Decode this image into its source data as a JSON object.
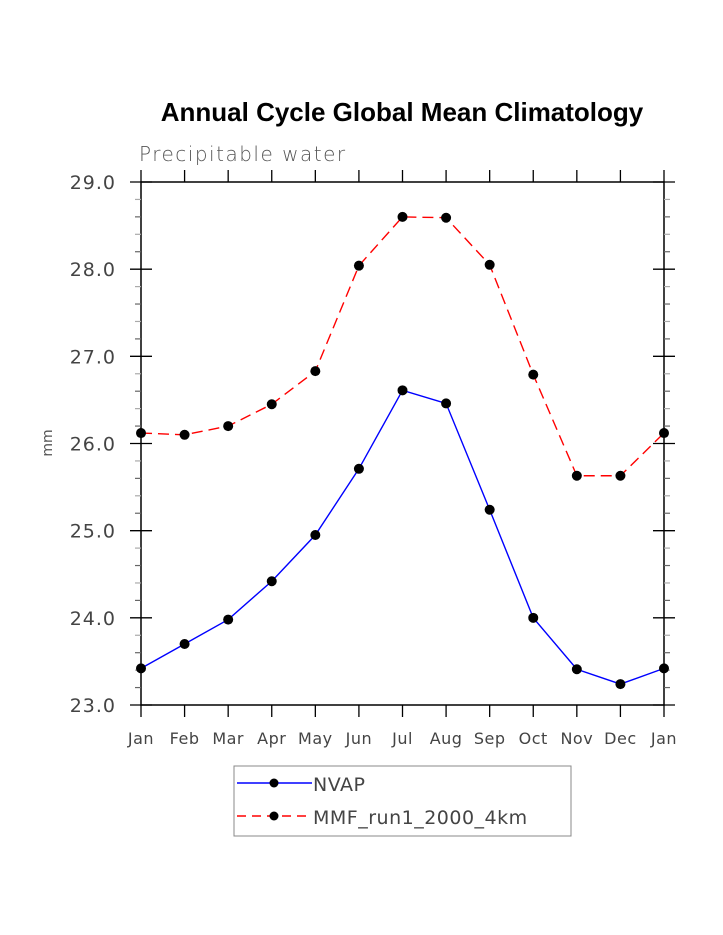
{
  "chart_data": {
    "type": "line",
    "title": "Annual Cycle Global Mean Climatology",
    "subtitle": "Precipitable water",
    "xlabel": "",
    "ylabel": "mm",
    "categories": [
      "Jan",
      "Feb",
      "Mar",
      "Apr",
      "May",
      "Jun",
      "Jul",
      "Aug",
      "Sep",
      "Oct",
      "Nov",
      "Dec",
      "Jan"
    ],
    "ylim": [
      23.0,
      29.0
    ],
    "yticks": [
      23.0,
      24.0,
      25.0,
      26.0,
      27.0,
      28.0,
      29.0
    ],
    "ytick_labels": [
      "23.0",
      "24.0",
      "25.0",
      "26.0",
      "27.0",
      "28.0",
      "29.0"
    ],
    "y_minor_step": 0.2,
    "grid": false,
    "legend_position": "bottom-center",
    "series": [
      {
        "name": "NVAP",
        "color": "#0000ff",
        "line_style": "solid",
        "marker": "filled-circle",
        "marker_color": "#000000",
        "values": [
          23.42,
          23.7,
          23.98,
          24.42,
          24.95,
          25.71,
          26.61,
          26.46,
          25.24,
          24.0,
          23.41,
          23.24,
          23.42
        ]
      },
      {
        "name": "MMF_run1_2000_4km",
        "color": "#ff0000",
        "line_style": "dashed",
        "marker": "filled-circle",
        "marker_color": "#000000",
        "values": [
          26.12,
          26.1,
          26.2,
          26.45,
          26.83,
          28.04,
          28.6,
          28.59,
          28.05,
          26.79,
          25.63,
          25.63,
          26.12
        ]
      }
    ]
  }
}
